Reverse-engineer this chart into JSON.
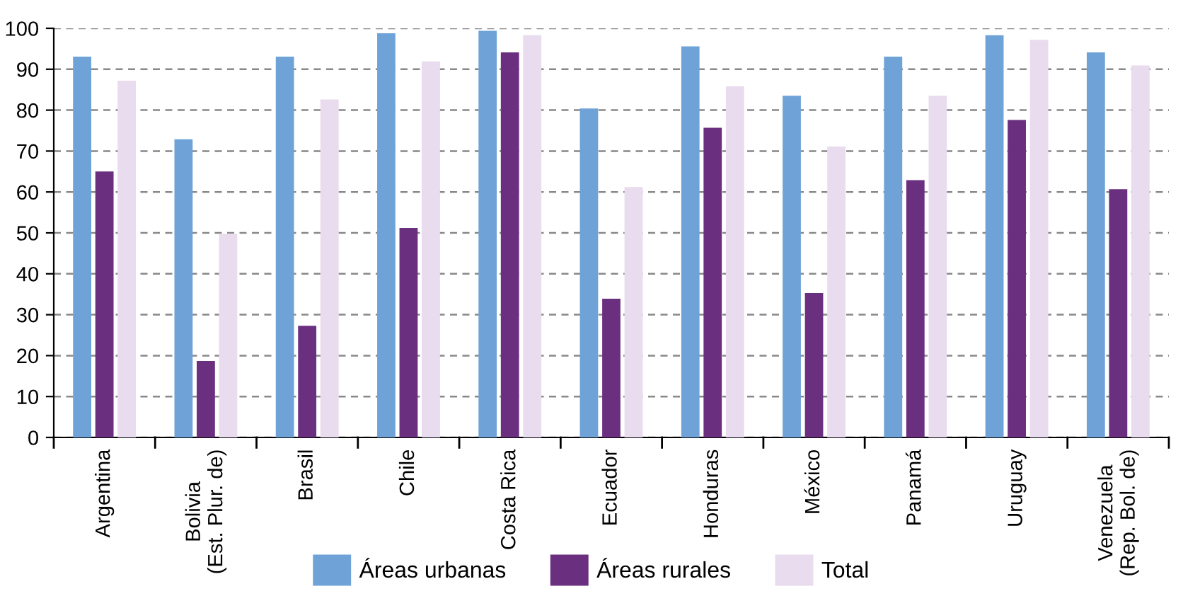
{
  "chart_data": {
    "type": "bar",
    "categories": [
      "Argentina",
      "Bolivia\n(Est. Plur. de)",
      "Brasil",
      "Chile",
      "Costa Rica",
      "Ecuador",
      "Honduras",
      "México",
      "Panamá",
      "Uruguay",
      "Venezuela\n(Rep. Bol. de)"
    ],
    "series": [
      {
        "name": "Áreas urbanas",
        "color": "#6fa3d7",
        "values": [
          93.1,
          72.9,
          93.1,
          98.8,
          99.4,
          80.4,
          95.6,
          83.5,
          93.1,
          98.3,
          94.1
        ]
      },
      {
        "name": "Áreas rurales",
        "color": "#6b2f7f",
        "values": [
          65.0,
          18.7,
          27.3,
          51.2,
          94.1,
          33.9,
          75.7,
          35.3,
          62.9,
          77.6,
          60.7
        ]
      },
      {
        "name": "Total",
        "color": "#e8dcee",
        "values": [
          87.2,
          49.8,
          82.6,
          91.9,
          98.3,
          61.2,
          85.8,
          71.1,
          83.5,
          97.2,
          90.9
        ]
      }
    ],
    "ylim": [
      0,
      100
    ],
    "yticks": [
      0,
      10,
      20,
      30,
      40,
      50,
      60,
      70,
      80,
      90,
      100
    ],
    "grid": "y",
    "legend": "bottom"
  }
}
